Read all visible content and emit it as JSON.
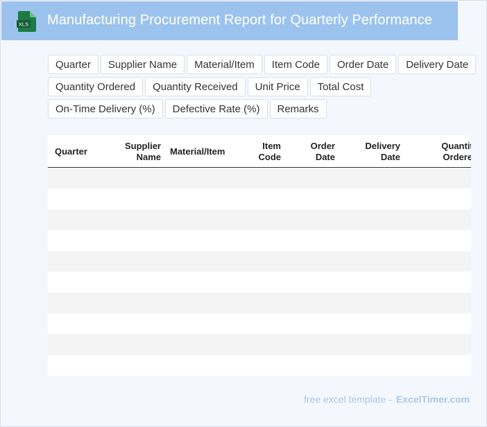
{
  "header": {
    "file_icon_label": "XLS",
    "title": "Manufacturing Procurement Report for Quarterly Performance"
  },
  "chips": [
    "Quarter",
    "Supplier Name",
    "Material/Item",
    "Item Code",
    "Order Date",
    "Delivery Date",
    "Quantity Ordered",
    "Quantity Received",
    "Unit Price",
    "Total Cost",
    "On-Time Delivery (%)",
    "Defective Rate (%)",
    "Remarks"
  ],
  "table": {
    "headers": [
      "Quarter",
      "Supplier Name",
      "Material/Item",
      "Item Code",
      "Order Date",
      "Delivery Date",
      "Quantity Ordered"
    ],
    "row_count": 10
  },
  "footer": {
    "prefix": "free excel template -",
    "brand": "ExcelTimer.com"
  },
  "colors": {
    "header_bg": "#9cc3ee",
    "icon_green": "#1e7a45",
    "page_bg": "#f4f8fe"
  }
}
